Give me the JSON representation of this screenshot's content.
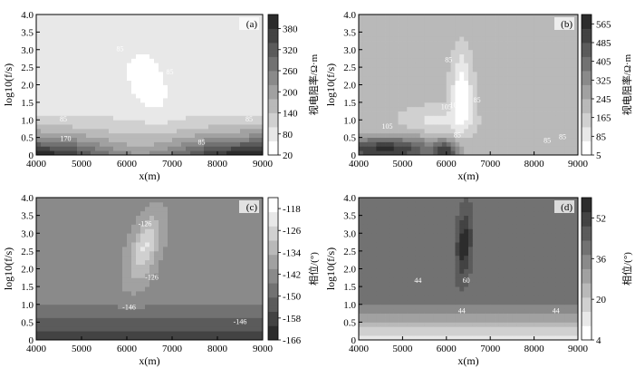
{
  "chart_data": [
    {
      "type": "heatmap",
      "panel_label": "(a)",
      "xlabel": "x(m)",
      "ylabel": "log10(f/s)",
      "xlim": [
        4000,
        9000
      ],
      "ylim": [
        0,
        4
      ],
      "x_ticks": [
        "4000",
        "5000",
        "6000",
        "7000",
        "8000",
        "9000"
      ],
      "y_ticks": [
        "0",
        "0.5",
        "1.0",
        "1.5",
        "2.0",
        "2.5",
        "3.0",
        "3.5",
        "4.0"
      ],
      "colorbar_label": "视电阻率/Ω·m",
      "colorbar_range": [
        20,
        420
      ],
      "colorbar_ticks": [
        "20",
        "80",
        "140",
        "200",
        "260",
        "320",
        "380"
      ],
      "colorbar_tick_values": [
        20,
        80,
        140,
        200,
        260,
        320,
        380
      ],
      "colorbar_reversed": false,
      "background_value": 95,
      "field": {
        "features": [
          {
            "type": "layer",
            "base": 360,
            "y_top": 1.2,
            "x_center": 6300,
            "x_spread": 1500,
            "notch_amp": 230
          },
          {
            "type": "blob",
            "x": 6450,
            "y": 2.1,
            "sx": 400,
            "sy": 0.8,
            "amp": -90,
            "tilt": 0.4
          }
        ]
      },
      "contour_labels": [
        {
          "text": "170",
          "x": 4650,
          "y": 0.4
        },
        {
          "text": "85",
          "x": 4600,
          "y": 0.95
        },
        {
          "text": "85",
          "x": 5850,
          "y": 2.95
        },
        {
          "text": "85",
          "x": 6950,
          "y": 2.3
        },
        {
          "text": "85",
          "x": 8700,
          "y": 0.95
        },
        {
          "text": "85",
          "x": 7650,
          "y": 0.3
        }
      ]
    },
    {
      "type": "heatmap",
      "panel_label": "(b)",
      "xlabel": "x(m)",
      "ylabel": "log10(f/s)",
      "xlim": [
        4000,
        9000
      ],
      "ylim": [
        0,
        4
      ],
      "x_ticks": [
        "4000",
        "5000",
        "6000",
        "7000",
        "8000",
        "9000"
      ],
      "y_ticks": [
        "0",
        "0.5",
        "1.0",
        "1.5",
        "2.0",
        "2.5",
        "3.0",
        "3.5",
        "4.0"
      ],
      "colorbar_label": "视电阻率/Ω·m",
      "colorbar_range": [
        5,
        605
      ],
      "colorbar_ticks": [
        "5",
        "85",
        "165",
        "245",
        "325",
        "405",
        "485",
        "565"
      ],
      "colorbar_tick_values": [
        5,
        85,
        165,
        245,
        325,
        405,
        485,
        565
      ],
      "colorbar_reversed": false,
      "background_value": 210,
      "field": {
        "features": [
          {
            "type": "blob",
            "x": 6350,
            "y": 1.8,
            "sx": 220,
            "sy": 1.1,
            "amp": -200,
            "tilt": 0.0
          },
          {
            "type": "blob",
            "x": 5800,
            "y": 1.0,
            "sx": 800,
            "sy": 0.4,
            "amp": -100,
            "tilt": 0.0
          },
          {
            "type": "blob",
            "x": 4600,
            "y": 0.15,
            "sx": 1200,
            "sy": 0.35,
            "amp": 350,
            "tilt": 0.0
          },
          {
            "type": "blob",
            "x": 6000,
            "y": 0.1,
            "sx": 250,
            "sy": 0.3,
            "amp": 250,
            "tilt": 0.0
          }
        ]
      },
      "contour_labels": [
        {
          "text": "105",
          "x": 4650,
          "y": 0.75
        },
        {
          "text": "85",
          "x": 6050,
          "y": 2.65
        },
        {
          "text": "105",
          "x": 6000,
          "y": 1.3
        },
        {
          "text": "105",
          "x": 6200,
          "y": 1.35
        },
        {
          "text": "85",
          "x": 6250,
          "y": 0.5
        },
        {
          "text": "85",
          "x": 6700,
          "y": 1.5
        },
        {
          "text": "85",
          "x": 8300,
          "y": 0.35
        },
        {
          "text": "85",
          "x": 8650,
          "y": 0.45
        }
      ]
    },
    {
      "type": "heatmap",
      "panel_label": "(c)",
      "xlabel": "x(m)",
      "ylabel": "log10(f/s)",
      "xlim": [
        4000,
        9000
      ],
      "ylim": [
        0,
        4
      ],
      "x_ticks": [
        "4000",
        "5000",
        "6000",
        "7000",
        "8000",
        "9000"
      ],
      "y_ticks": [
        "0",
        "0.5",
        "1.0",
        "1.5",
        "2.0",
        "2.5",
        "3.0",
        "3.5",
        "4.0"
      ],
      "colorbar_label": "相位/(°)",
      "colorbar_range": [
        -166,
        -114
      ],
      "colorbar_ticks": [
        "-118",
        "-126",
        "-134",
        "-142",
        "-150",
        "-158",
        "-166"
      ],
      "colorbar_tick_values": [
        -118,
        -126,
        -134,
        -142,
        -150,
        -158,
        -166
      ],
      "colorbar_reversed": true,
      "background_value": -142,
      "field": {
        "features": [
          {
            "type": "layer",
            "base": -20,
            "y_top": 1.4,
            "x_center": 6500,
            "x_spread": 1200,
            "notch_amp": 0
          },
          {
            "type": "blob",
            "x": 6400,
            "y": 2.6,
            "sx": 300,
            "sy": 0.9,
            "amp": 18,
            "tilt": -0.6
          }
        ]
      },
      "contour_labels": [
        {
          "text": "-126",
          "x": 6400,
          "y": 3.2
        },
        {
          "text": "-126",
          "x": 6550,
          "y": 1.7
        },
        {
          "text": "-146",
          "x": 6050,
          "y": 0.85
        },
        {
          "text": "-146",
          "x": 8500,
          "y": 0.45
        }
      ]
    },
    {
      "type": "heatmap",
      "panel_label": "(d)",
      "xlabel": "x(m)",
      "ylabel": "log10(f/s)",
      "xlim": [
        4000,
        9000
      ],
      "ylim": [
        0,
        4
      ],
      "x_ticks": [
        "4000",
        "5000",
        "6000",
        "7000",
        "8000",
        "9000"
      ],
      "y_ticks": [
        "0",
        "0.5",
        "1.0",
        "1.5",
        "2.0",
        "2.5",
        "3.0",
        "3.5",
        "4.0"
      ],
      "colorbar_label": "相位/(°)",
      "colorbar_range": [
        4,
        60
      ],
      "colorbar_ticks": [
        "4",
        "20",
        "36",
        "52"
      ],
      "colorbar_tick_values": [
        4,
        20,
        36,
        52
      ],
      "colorbar_reversed": false,
      "background_value": 40,
      "field": {
        "features": [
          {
            "type": "layer",
            "base": -30,
            "y_top": 1.3,
            "x_center": 6200,
            "x_spread": 1000,
            "notch_amp": 0
          },
          {
            "type": "blob",
            "x": 6400,
            "y": 2.7,
            "sx": 180,
            "sy": 1.0,
            "amp": 18,
            "tilt": -0.2
          }
        ]
      },
      "contour_labels": [
        {
          "text": "44",
          "x": 5350,
          "y": 1.6
        },
        {
          "text": "60",
          "x": 6450,
          "y": 1.6
        },
        {
          "text": "44",
          "x": 6350,
          "y": 0.75
        },
        {
          "text": "44",
          "x": 8500,
          "y": 0.75
        }
      ]
    }
  ]
}
